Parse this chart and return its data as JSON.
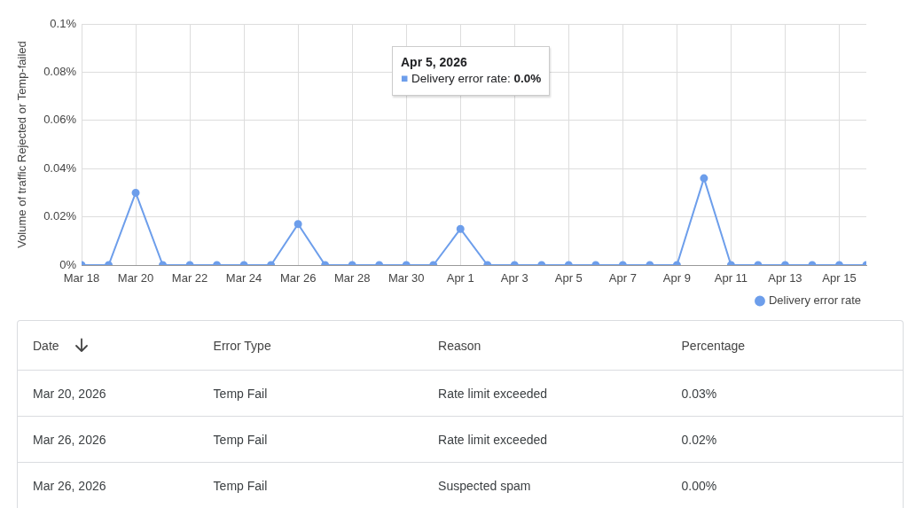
{
  "chart_data": [
    {
      "type": "line",
      "ylabel": "Volume of traffic Rejected or Temp-failed",
      "x": [
        "2026-03-18",
        "2026-03-19",
        "2026-03-20",
        "2026-03-21",
        "2026-03-22",
        "2026-03-23",
        "2026-03-24",
        "2026-03-25",
        "2026-03-26",
        "2026-03-27",
        "2026-03-28",
        "2026-03-29",
        "2026-03-30",
        "2026-03-31",
        "2026-04-01",
        "2026-04-02",
        "2026-04-03",
        "2026-04-04",
        "2026-04-05",
        "2026-04-06",
        "2026-04-07",
        "2026-04-08",
        "2026-04-09",
        "2026-04-10",
        "2026-04-11",
        "2026-04-12",
        "2026-04-13",
        "2026-04-14",
        "2026-04-15",
        "2026-04-16"
      ],
      "series": [
        {
          "name": "Delivery error rate",
          "color": "#6d9eeb",
          "values": [
            0,
            0,
            0.03,
            0,
            0,
            0,
            0,
            0,
            0.017,
            0,
            0,
            0,
            0,
            0,
            0.015,
            0,
            0,
            0,
            0,
            0,
            0,
            0,
            0,
            0.036,
            0,
            0,
            0,
            0,
            0,
            0
          ]
        }
      ],
      "xlim": [
        "2026-03-18",
        "2026-04-16"
      ],
      "xticks": [
        {
          "value": "2026-03-18",
          "label": "Mar 18"
        },
        {
          "value": "2026-03-20",
          "label": "Mar 20"
        },
        {
          "value": "2026-03-22",
          "label": "Mar 22"
        },
        {
          "value": "2026-03-24",
          "label": "Mar 24"
        },
        {
          "value": "2026-03-26",
          "label": "Mar 26"
        },
        {
          "value": "2026-03-28",
          "label": "Mar 28"
        },
        {
          "value": "2026-03-30",
          "label": "Mar 30"
        },
        {
          "value": "2026-04-01",
          "label": "Apr 1"
        },
        {
          "value": "2026-04-03",
          "label": "Apr 3"
        },
        {
          "value": "2026-04-05",
          "label": "Apr 5"
        },
        {
          "value": "2026-04-07",
          "label": "Apr 7"
        },
        {
          "value": "2026-04-09",
          "label": "Apr 9"
        },
        {
          "value": "2026-04-11",
          "label": "Apr 11"
        },
        {
          "value": "2026-04-13",
          "label": "Apr 13"
        },
        {
          "value": "2026-04-15",
          "label": "Apr 15"
        }
      ],
      "ylim": [
        0,
        0.1
      ],
      "yticks": [
        {
          "value": 0,
          "label": "0%"
        },
        {
          "value": 0.02,
          "label": "0.02%"
        },
        {
          "value": 0.04,
          "label": "0.04%"
        },
        {
          "value": 0.06,
          "label": "0.06%"
        },
        {
          "value": 0.08,
          "label": "0.08%"
        },
        {
          "value": 0.1,
          "label": "0.1%"
        }
      ],
      "grid": true,
      "legend": "bottom right",
      "marker": "circle",
      "line_style": "solid",
      "annotations": [
        "Apr 5, 2026\n■ Delivery error rate: 0.0%"
      ]
    },
    {
      "type": "other",
      "categories": [
        "Date",
        "Error Type",
        "Reason",
        "Percentage"
      ],
      "cell_labels": [
        [
          "Mar 20, 2026",
          "Temp Fail",
          "Rate limit exceeded",
          "0.03%"
        ],
        [
          "Mar 26, 2026",
          "Temp Fail",
          "Rate limit exceeded",
          "0.02%"
        ],
        [
          "Mar 26, 2026",
          "Temp Fail",
          "Suspected spam",
          "0.00%"
        ]
      ]
    }
  ]
}
